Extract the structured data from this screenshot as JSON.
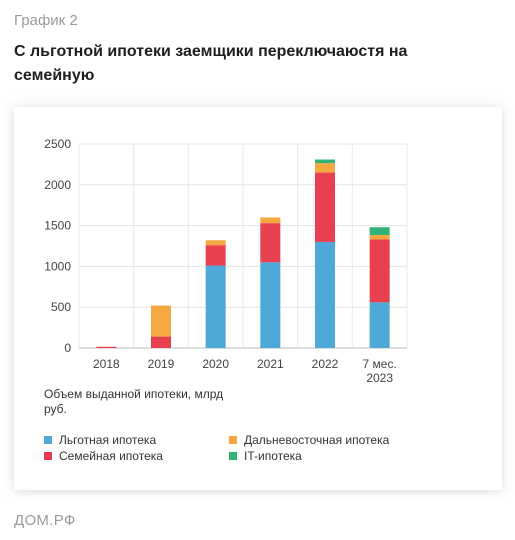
{
  "header": {
    "label": "График 2",
    "title": "С льготной ипотеки заемщики переключаюстя на семейную"
  },
  "source": "ДОМ.РФ",
  "chart_data": {
    "type": "bar",
    "stacked": true,
    "categories": [
      "2018",
      "2019",
      "2020",
      "2021",
      "2022",
      "7 мес.\n2023"
    ],
    "note": "Объем выданной ипотеки, млрд руб.",
    "ylim": [
      0,
      2500
    ],
    "yticks": [
      0,
      500,
      1000,
      1500,
      2000,
      2500
    ],
    "grid": true,
    "legend_position": "bottom",
    "series": [
      {
        "name": "Льготная ипотека",
        "color": "#4ea8d8",
        "values": [
          0,
          0,
          1010,
          1050,
          1300,
          560
        ]
      },
      {
        "name": "Семейная ипотека",
        "color": "#e8404e",
        "values": [
          15,
          140,
          250,
          480,
          850,
          770
        ]
      },
      {
        "name": "Дальневосточная ипотека",
        "color": "#f5a742",
        "values": [
          0,
          380,
          60,
          70,
          115,
          55
        ]
      },
      {
        "name": "IT-ипотека",
        "color": "#2fb376",
        "values": [
          0,
          0,
          0,
          0,
          45,
          95
        ]
      }
    ]
  },
  "legend": [
    {
      "name": "Льготная ипотека",
      "color": "#4ea8d8"
    },
    {
      "name": "Дальневосточная ипотека",
      "color": "#f5a742"
    },
    {
      "name": "Семейная ипотека",
      "color": "#e8404e"
    },
    {
      "name": "IT-ипотека",
      "color": "#2fb376"
    }
  ]
}
